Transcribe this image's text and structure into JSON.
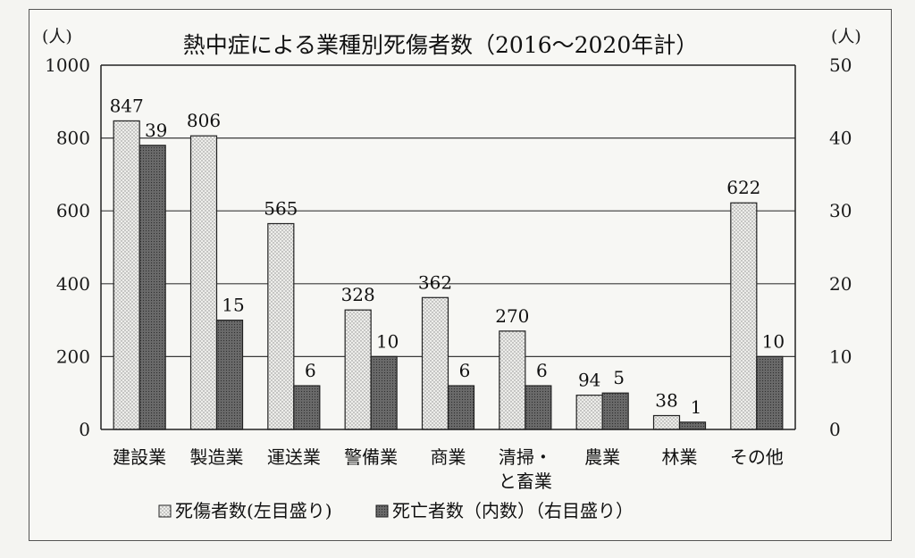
{
  "chart_data": {
    "type": "bar",
    "title": "熱中症による業種別死傷者数（2016～2020年計）",
    "left_unit": "(人)",
    "right_unit": "(人)",
    "categories": [
      [
        "建設業"
      ],
      [
        "製造業"
      ],
      [
        "運送業"
      ],
      [
        "警備業"
      ],
      [
        "商業"
      ],
      [
        "清掃・",
        "と畜業"
      ],
      [
        "農業"
      ],
      [
        "林業"
      ],
      [
        "その他"
      ]
    ],
    "series": [
      {
        "name": "死傷者数(左目盛り)",
        "axis": "left",
        "values": [
          847,
          806,
          565,
          328,
          362,
          270,
          94,
          38,
          622
        ],
        "fill": "#e9e9e6"
      },
      {
        "name": "死亡者数（内数）（右目盛り）",
        "axis": "right",
        "values": [
          39,
          15,
          6,
          10,
          6,
          6,
          5,
          1,
          10
        ],
        "fill": "#6d6d6d"
      }
    ],
    "ylim_left": [
      0,
      1000
    ],
    "yticks_left": [
      0,
      200,
      400,
      600,
      800,
      1000
    ],
    "ylim_right": [
      0,
      50
    ],
    "yticks_right": [
      0,
      10,
      20,
      30,
      40,
      50
    ],
    "grid": true,
    "legend": "bottom"
  }
}
